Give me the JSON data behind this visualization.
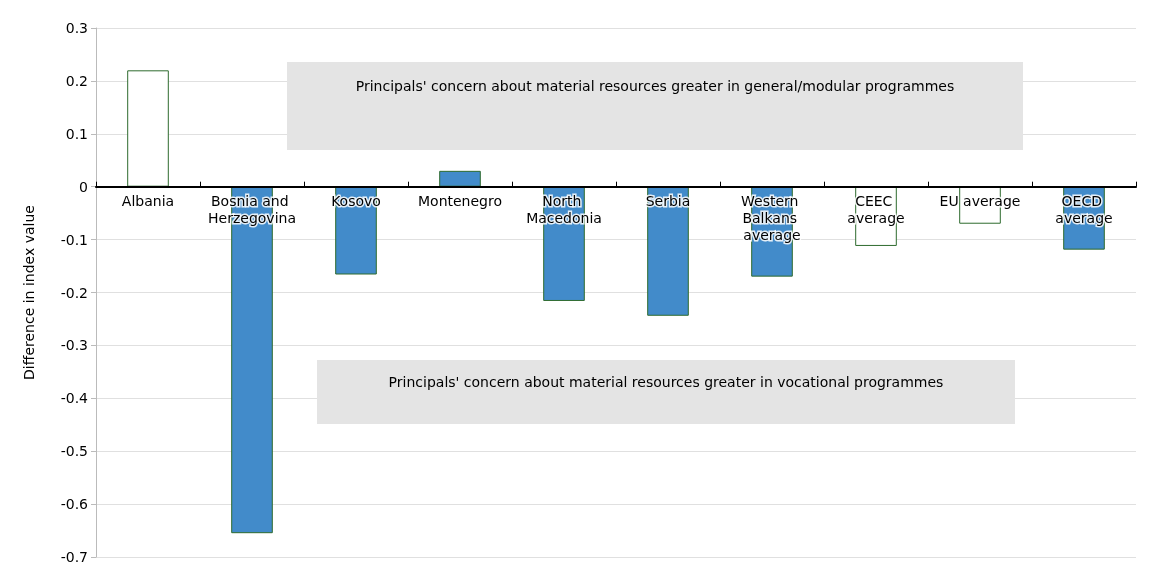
{
  "chart_data": {
    "type": "bar",
    "ylabel": "Difference in index value",
    "categories": [
      "Albania",
      "Bosnia and Herzegovina",
      "Kosovo",
      "Montenegro",
      "North Macedonia",
      "Serbia",
      "Western Balkans average",
      "CEEC average",
      "EU average",
      "OECD average"
    ],
    "values": [
      0.22,
      -0.655,
      -0.166,
      0.03,
      -0.216,
      -0.244,
      -0.17,
      -0.112,
      -0.07,
      -0.119
    ],
    "colors": [
      "#ffffff",
      "#428bca",
      "#428bca",
      "#428bca",
      "#428bca",
      "#428bca",
      "#428bca",
      "#ffffff",
      "#ffffff",
      "#428bca"
    ],
    "ylim": [
      -0.7,
      0.3
    ],
    "yticks": [
      -0.7,
      -0.6,
      -0.5,
      -0.4,
      -0.3,
      -0.2,
      -0.1,
      0,
      0.1,
      0.2,
      0.3
    ],
    "grid": "y",
    "annotations": [
      "Principals' concern about material resources greater in general/modular programmes",
      "Principals' concern about material resources greater in vocational programmes"
    ]
  }
}
